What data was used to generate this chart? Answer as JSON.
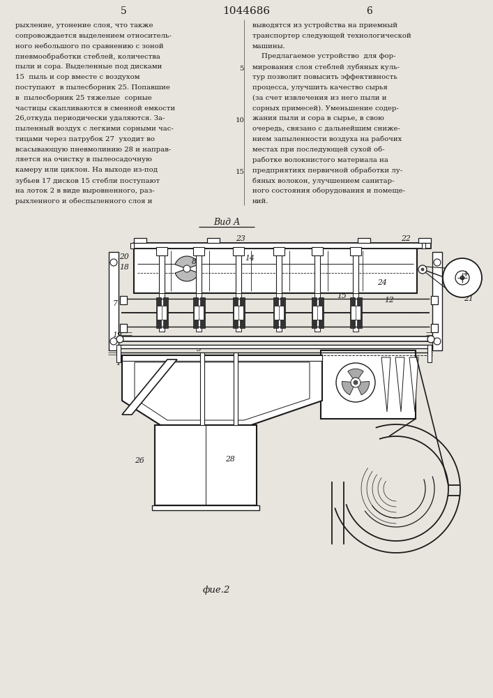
{
  "page_number_left": "5",
  "page_number_center": "1044686",
  "page_number_right": "6",
  "bg_color": "#d8d5cc",
  "text_color": "#1a1a1a",
  "ink": "#1a1a1a",
  "view_label": "Вид А",
  "fig_label": "фие.2",
  "left_col_lines": [
    "рыхление, утонение слоя, что также",
    "сопровождается выделением относитель-",
    "ного небольшого по сравнению с зоной",
    "пневмообработки стеблей, количества",
    "пыли и сора. Выделенные под дисками",
    "15  пыль и сор вместе с воздухом",
    "поступают  в пылесборник 25. Попавшие",
    "в  пылесборник 25 тяжелые  сорные",
    "частицы скапливаются в сменной емкости",
    "26,откуда периодически удаляются. За-",
    "пыленный воздух с легкими сорными час-",
    "тицами через патрубок 27  уходит во",
    "всасывающую пневмолинию 28 и направ-",
    "ляется на очистку в пылеосадочную",
    "камеру или циклон. На выходе из-под",
    "зубьев 17 дисков 15 стебли поступают",
    "на лоток 2 в виде выровненного, раз-",
    "рыхленного и обеспыленного слоя и"
  ],
  "right_col_lines": [
    "выводятся из устройства на приемный",
    "транспортер следующей технологической",
    "машины.",
    "    Предлагаемое устройство  для фор-",
    "мирования слоя стеблей лубяных куль-",
    "тур позволит повысить эффективность",
    "процесса, улучшить качество сырья",
    "(за счет извлечения из него пыли и",
    "сорных примесей). Уменьшение содер-",
    "жания пыли и сора в сырье, в свою",
    "очередь, связано с дальнейшим сниже-",
    "нием запыленности воздуха на рабочих",
    "местах при последующей сухой об-",
    "работке волокнистого материала на",
    "предприятиях первичной обработки лу-",
    "бяных волокон, улучшением санитар-",
    "ного состояния оборудования и помеще-",
    "ний."
  ]
}
